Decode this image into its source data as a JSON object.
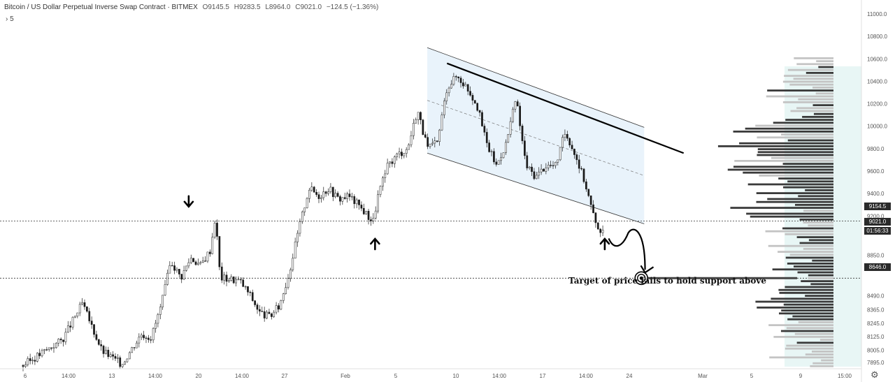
{
  "header": {
    "title": "Bitcoin / US Dollar Perpetual Inverse Swap Contract · BITMEX",
    "open": "O9145.5",
    "high": "H9283.5",
    "low": "L8964.0",
    "close": "C9021.0",
    "change": "−124.5 (−1.36%)",
    "interval": "5"
  },
  "price_tags": {
    "resistance": "9154.5",
    "last": "9021.0",
    "countdown": "01:56:33",
    "target": "8646.0"
  },
  "colors": {
    "candle": "#1a1a1a",
    "channel_fill": "#e9f3fb",
    "volume_profile_dark": "#3a3a3a",
    "volume_profile_light": "#c4c4c4",
    "volume_profile_area": "#d9f0ee",
    "tag_dark": "#2a2a2a"
  },
  "icons": {
    "settings": "gear-icon"
  },
  "annotation": "Target of price fails to hold support above",
  "chart_data": {
    "type": "candlestick",
    "title": "Bitcoin / US Dollar Perpetual Inverse Swap Contract · BITMEX",
    "xlabel": "",
    "ylabel": "",
    "x_ticks": [
      "6",
      "14:00",
      "13",
      "14:00",
      "20",
      "14:00",
      "27",
      "Feb",
      "5",
      "10",
      "14:00",
      "17",
      "14:00",
      "24",
      "Mar",
      "5",
      "9",
      "15:00"
    ],
    "y_ticks": [
      11000.0,
      10800.0,
      10600.0,
      10400.0,
      10200.0,
      10000.0,
      9800.0,
      9600.0,
      9400.0,
      9200.0,
      8850.0,
      8730.0,
      8490.0,
      8365.0,
      8245.0,
      8125.0,
      8005.0,
      7895.0
    ],
    "ylim": [
      7860,
      11050
    ],
    "grid": false,
    "close_path": [
      [
        0,
        7870
      ],
      [
        4,
        8100
      ],
      [
        6,
        8420
      ],
      [
        8,
        8000
      ],
      [
        10,
        7880
      ],
      [
        12,
        8150
      ],
      [
        13,
        8120
      ],
      [
        14,
        8400
      ],
      [
        15,
        8800
      ],
      [
        16,
        8650
      ],
      [
        17,
        8830
      ],
      [
        18,
        8760
      ],
      [
        19,
        8900
      ],
      [
        19.5,
        9200
      ],
      [
        20,
        8650
      ],
      [
        21,
        8640
      ],
      [
        22,
        8620
      ],
      [
        23,
        8500
      ],
      [
        24,
        8340
      ],
      [
        25,
        8300
      ],
      [
        26,
        8400
      ],
      [
        27,
        8700
      ],
      [
        28,
        9100
      ],
      [
        29,
        9450
      ],
      [
        30,
        9380
      ],
      [
        31,
        9450
      ],
      [
        32,
        9350
      ],
      [
        33,
        9380
      ],
      [
        34,
        9300
      ],
      [
        35,
        9200
      ],
      [
        35.5,
        9150
      ],
      [
        36,
        9380
      ],
      [
        37,
        9650
      ],
      [
        38,
        9750
      ],
      [
        39,
        9800
      ],
      [
        40,
        10150
      ],
      [
        41,
        9800
      ],
      [
        42,
        9850
      ],
      [
        43,
        10350
      ],
      [
        44,
        10450
      ],
      [
        45,
        10350
      ],
      [
        46,
        10200
      ],
      [
        47,
        9850
      ],
      [
        48,
        9650
      ],
      [
        49,
        9850
      ],
      [
        50,
        10250
      ],
      [
        51,
        9650
      ],
      [
        52,
        9550
      ],
      [
        53,
        9650
      ],
      [
        54,
        9650
      ],
      [
        55,
        9950
      ],
      [
        56,
        9750
      ],
      [
        57,
        9500
      ],
      [
        58,
        9150
      ],
      [
        59,
        9021
      ]
    ],
    "key_levels": [
      {
        "label": "9154.5",
        "price": 9154.5
      },
      {
        "label": "8646.0",
        "price": 8646.0
      }
    ],
    "channel": {
      "upper": [
        [
          41,
          10700
        ],
        [
          63,
          9990
        ]
      ],
      "lower": [
        [
          41,
          9760
        ],
        [
          63,
          9130
        ]
      ]
    },
    "trendline": [
      [
        43,
        10560
      ],
      [
        67,
        9760
      ]
    ],
    "arrows": [
      {
        "direction": "down",
        "price": 9265,
        "x": 16.8
      },
      {
        "direction": "up",
        "price": 9090,
        "x": 35.7
      },
      {
        "direction": "up",
        "price": 9090,
        "x": 59
      }
    ],
    "target": {
      "price": 8646.0,
      "x": 62
    }
  }
}
